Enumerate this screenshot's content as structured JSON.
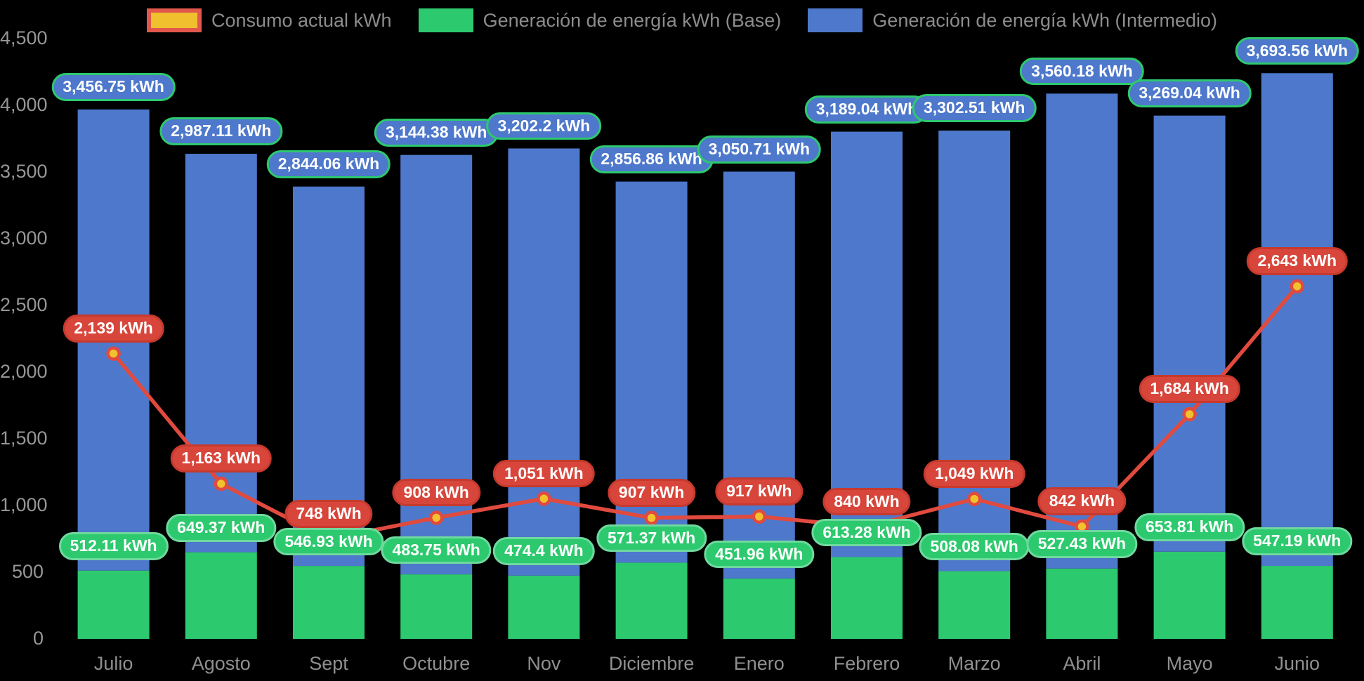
{
  "page": {
    "background": "#000000"
  },
  "chart_data": {
    "type": "bar",
    "stacked": true,
    "title": "",
    "categories": [
      "Julio",
      "Agosto",
      "Sept",
      "Octubre",
      "Nov",
      "Diciembre",
      "Enero",
      "Febrero",
      "Marzo",
      "Abril",
      "Mayo",
      "Junio"
    ],
    "series": [
      {
        "name": "Consumo actual kWh",
        "type": "line",
        "values": [
          2139,
          1163,
          748,
          908,
          1051,
          907,
          917,
          840,
          1049,
          842,
          1684,
          2643
        ],
        "labels": [
          "2,139 kWh",
          "1,163 kWh",
          "748 kWh",
          "908 kWh",
          "1,051 kWh",
          "907 kWh",
          "917 kWh",
          "840 kWh",
          "1,049 kWh",
          "842 kWh",
          "1,684 kWh",
          "2,643 kWh"
        ]
      },
      {
        "name": "Generación de energía kWh (Base)",
        "type": "bar",
        "values": [
          512.11,
          649.37,
          546.93,
          483.75,
          474.4,
          571.37,
          451.96,
          613.28,
          508.08,
          527.43,
          653.81,
          547.19
        ],
        "labels": [
          "512.11 kWh",
          "649.37 kWh",
          "546.93 kWh",
          "483.75 kWh",
          "474.4 kWh",
          "571.37 kWh",
          "451.96 kWh",
          "613.28 kWh",
          "508.08 kWh",
          "527.43 kWh",
          "653.81 kWh",
          "547.19 kWh"
        ]
      },
      {
        "name": "Generación de energía kWh (Intermedio)",
        "type": "bar",
        "values": [
          3456.75,
          2987.11,
          2844.06,
          3144.38,
          3202.2,
          2856.86,
          3050.71,
          3189.04,
          3302.51,
          3560.18,
          3269.04,
          3693.56
        ],
        "labels": [
          "3,456.75 kWh",
          "2,987.11 kWh",
          "2,844.06 kWh",
          "3,144.38 kWh",
          "3,202.2 kWh",
          "2,856.86 kWh",
          "3,050.71 kWh",
          "3,189.04 kWh",
          "3,302.51 kWh",
          "3,560.18 kWh",
          "3,269.04 kWh",
          "3,693.56 kWh"
        ]
      }
    ],
    "y_axis": {
      "min": 0,
      "max": 4500,
      "step": 500,
      "tick_labels": [
        "0",
        "500",
        "1,000",
        "1,500",
        "2,000",
        "2,500",
        "3,000",
        "3,500",
        "4,000",
        "4,500"
      ]
    },
    "x_axis": {
      "tick_labels": [
        "Julio",
        "Agosto",
        "Sept",
        "Octubre",
        "Nov",
        "Diciembre",
        "Enero",
        "Febrero",
        "Marzo",
        "Abril",
        "Mayo",
        "Junio"
      ]
    },
    "legend": {
      "position": "top",
      "items": [
        {
          "label": "Consumo actual kWh"
        },
        {
          "label": "Generación de energía kWh (Base)"
        },
        {
          "label": "Generación de energía kWh (Intermedio)"
        }
      ]
    },
    "grid": false,
    "colors": {
      "background": "#000000",
      "bar_base": "#2dc96e",
      "bar_intermedio": "#4d78cb",
      "line": "#e04a3f",
      "point_fill": "#f2c12e",
      "point_border": "#e04a3f",
      "pill_consumo_fill": "#d8453a",
      "pill_consumo_border": "#c63a2e",
      "pill_base_fill": "#2dc96e",
      "pill_base_border": "#6fd99e",
      "pill_intermedio_fill": "#4d78cb",
      "pill_intermedio_border": "#2dc96e",
      "legend_consumo_fill": "#f0c02e",
      "legend_consumo_border": "#e2574b",
      "axis_text": "#969696",
      "legend_text": "#8c8c8c"
    }
  }
}
